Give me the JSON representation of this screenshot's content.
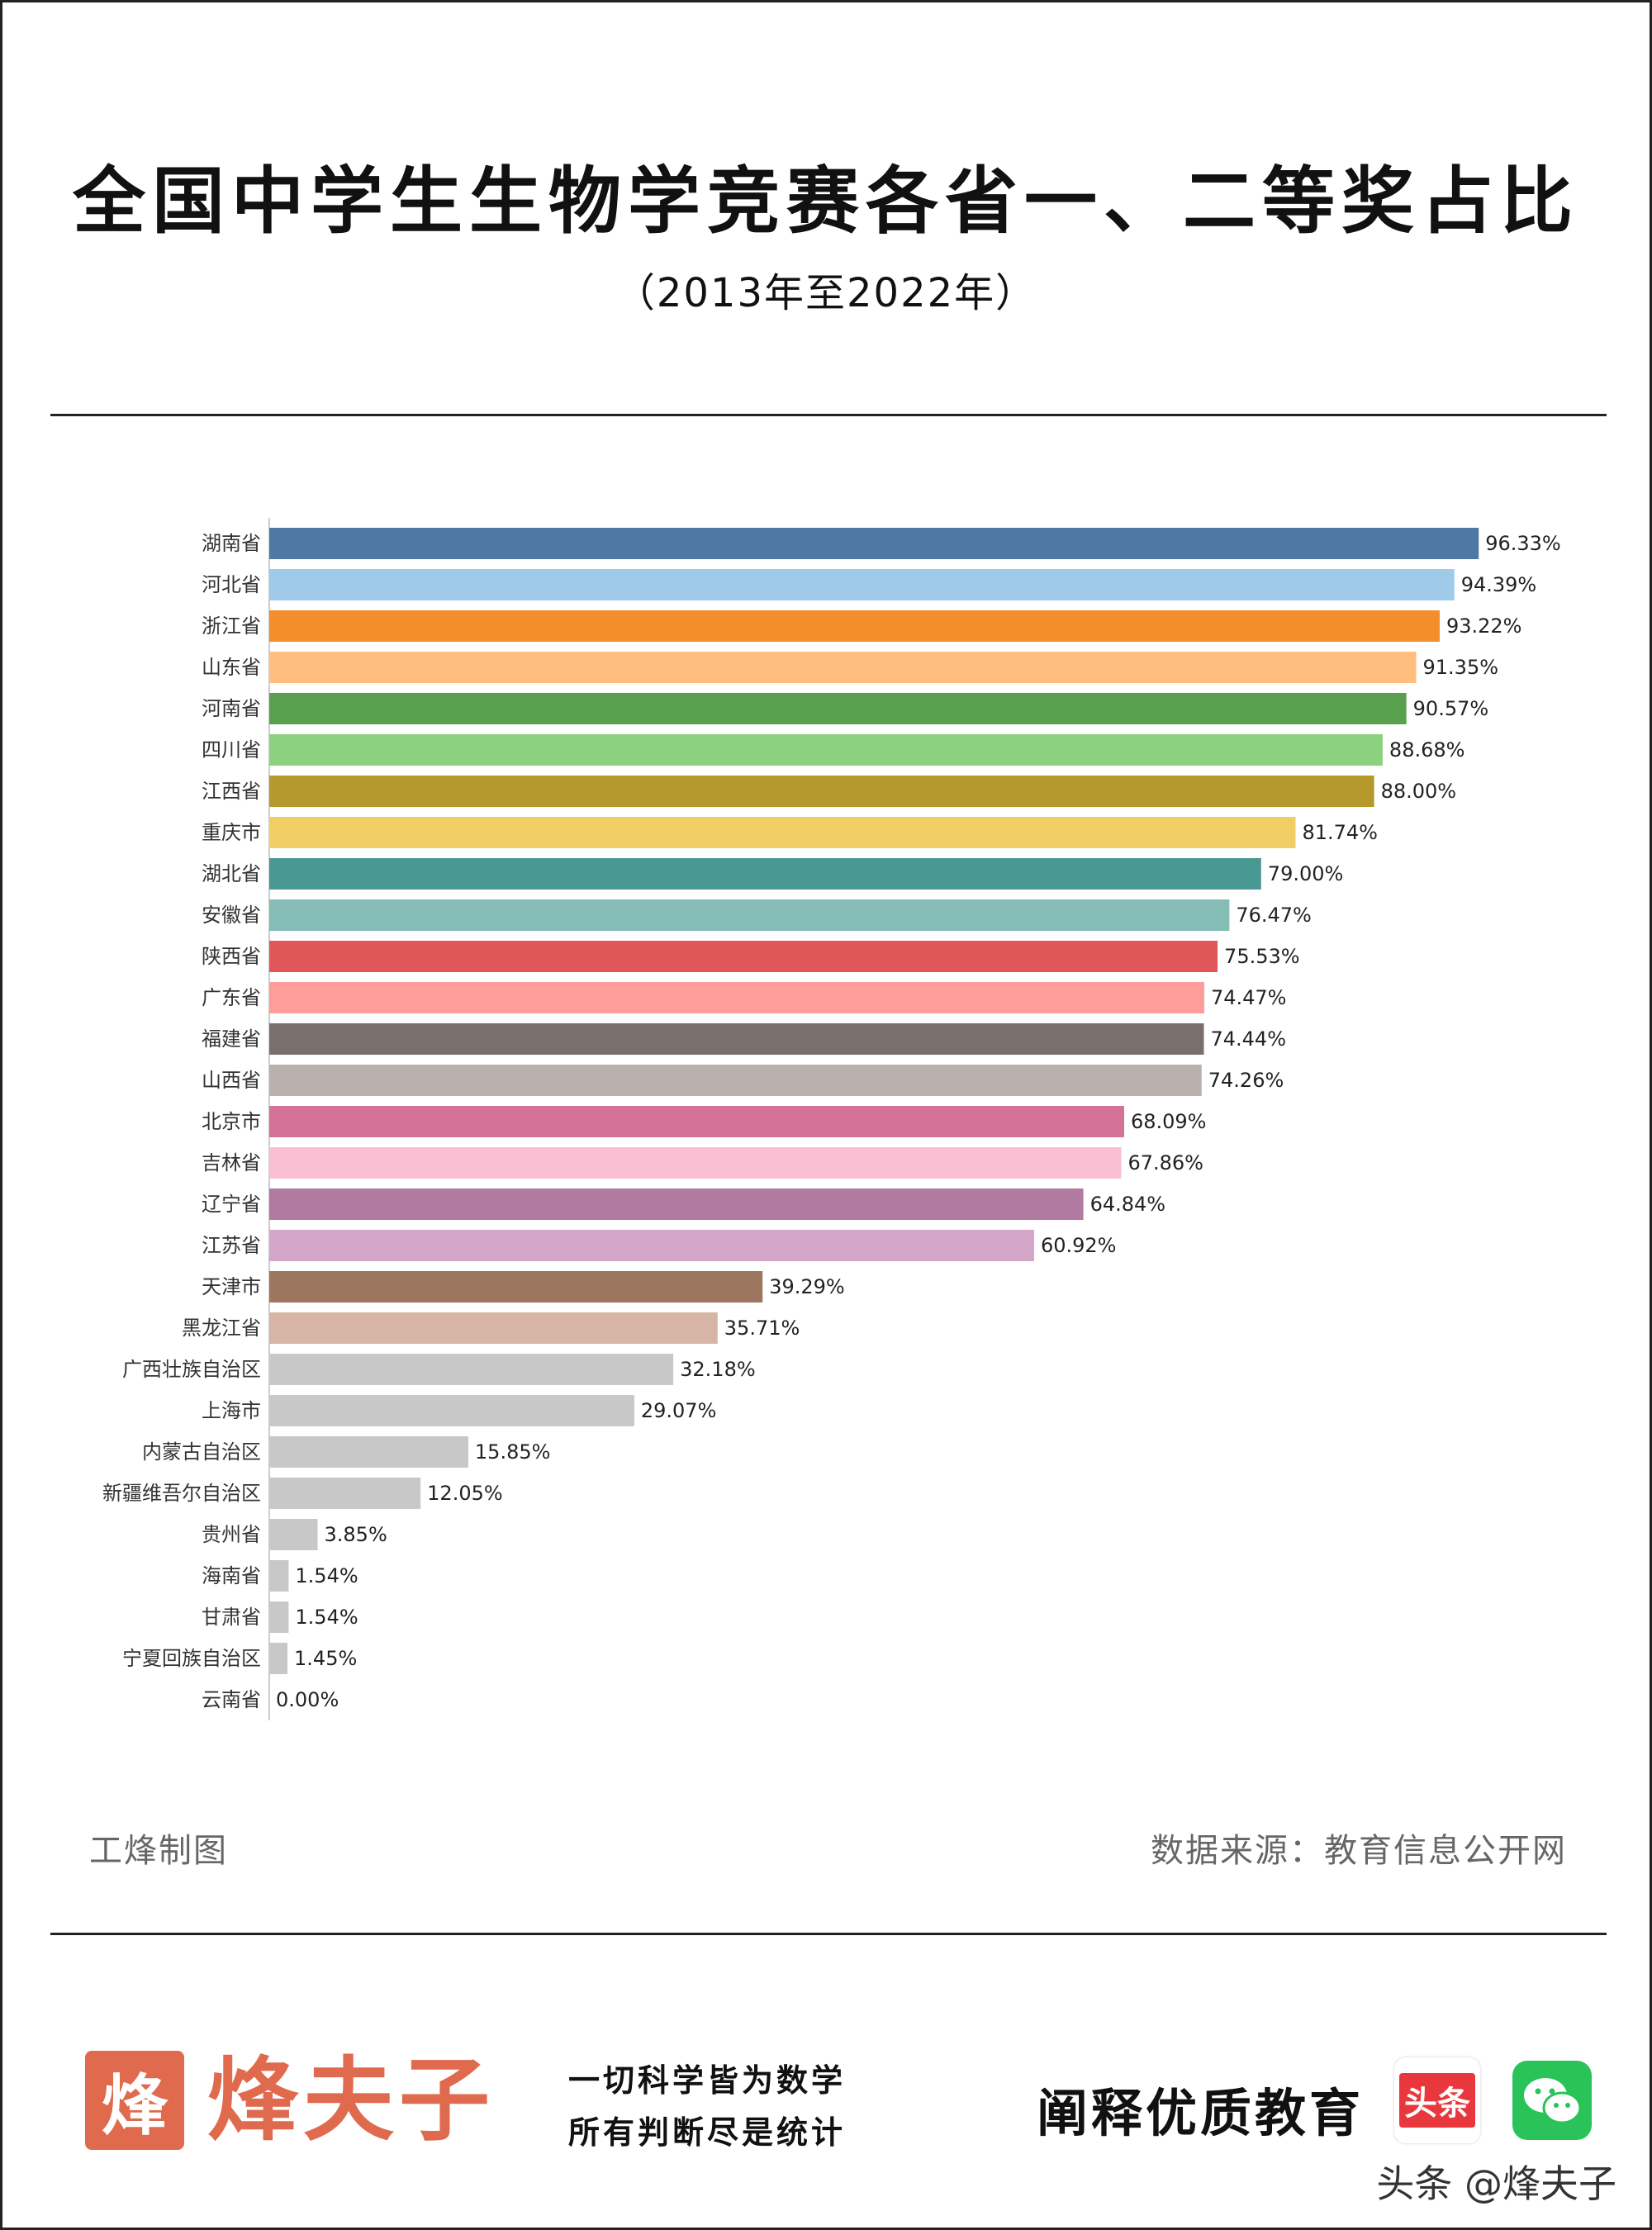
{
  "title": "全国中学生生物学竞赛各省一、二等奖占比",
  "subtitle": "（2013年至2022年）",
  "credit": "工烽制图",
  "source": "数据来源：教育信息公开网",
  "footer": {
    "logo_char": "烽",
    "brand": "烽夫子",
    "slogan_line1": "一切科学皆为数学",
    "slogan_line2": "所有判断尽是统计",
    "tagline": "阐释优质教育",
    "toutiao_badge": "头条",
    "handle": "头条 @烽夫子"
  },
  "icons": {
    "toutiao": "toutiao-app-icon",
    "wechat": "wechat-icon"
  },
  "chart_data": {
    "type": "bar",
    "orientation": "horizontal",
    "categories": [
      "湖南省",
      "河北省",
      "浙江省",
      "山东省",
      "河南省",
      "四川省",
      "江西省",
      "重庆市",
      "湖北省",
      "安徽省",
      "陕西省",
      "广东省",
      "福建省",
      "山西省",
      "北京市",
      "吉林省",
      "辽宁省",
      "江苏省",
      "天津市",
      "黑龙江省",
      "广西壮族自治区",
      "上海市",
      "内蒙古自治区",
      "新疆维吾尔自治区",
      "贵州省",
      "海南省",
      "甘肃省",
      "宁夏回族自治区",
      "云南省"
    ],
    "values": [
      96.33,
      94.39,
      93.22,
      91.35,
      90.57,
      88.68,
      88.0,
      81.74,
      79.0,
      76.47,
      75.53,
      74.47,
      74.44,
      74.26,
      68.09,
      67.86,
      64.84,
      60.92,
      39.29,
      35.71,
      32.18,
      29.07,
      15.85,
      12.05,
      3.85,
      1.54,
      1.54,
      1.45,
      0.0
    ],
    "labels": [
      "96.33%",
      "94.39%",
      "93.22%",
      "91.35%",
      "90.57%",
      "88.68%",
      "88.00%",
      "81.74%",
      "79.00%",
      "76.47%",
      "75.53%",
      "74.47%",
      "74.44%",
      "74.26%",
      "68.09%",
      "67.86%",
      "64.84%",
      "60.92%",
      "39.29%",
      "35.71%",
      "32.18%",
      "29.07%",
      "15.85%",
      "12.05%",
      "3.85%",
      "1.54%",
      "1.54%",
      "1.45%",
      "0.00%"
    ],
    "colors": [
      "#4e79a7",
      "#a0cbe8",
      "#f28e2b",
      "#ffbe7d",
      "#59a14f",
      "#8cd17d",
      "#b6992d",
      "#f1ce63",
      "#499894",
      "#86bcb6",
      "#e15759",
      "#ff9d9a",
      "#79706e",
      "#bab0ac",
      "#d37295",
      "#fabfd2",
      "#b07aa1",
      "#d4a6c8",
      "#9d7660",
      "#d7b5a6",
      "#c8c8c8",
      "#c8c8c8",
      "#c8c8c8",
      "#c8c8c8",
      "#c8c8c8",
      "#c8c8c8",
      "#c8c8c8",
      "#c8c8c8",
      "#c8c8c8"
    ],
    "xlim": [
      0,
      100
    ],
    "grid": false,
    "legend": "none"
  }
}
